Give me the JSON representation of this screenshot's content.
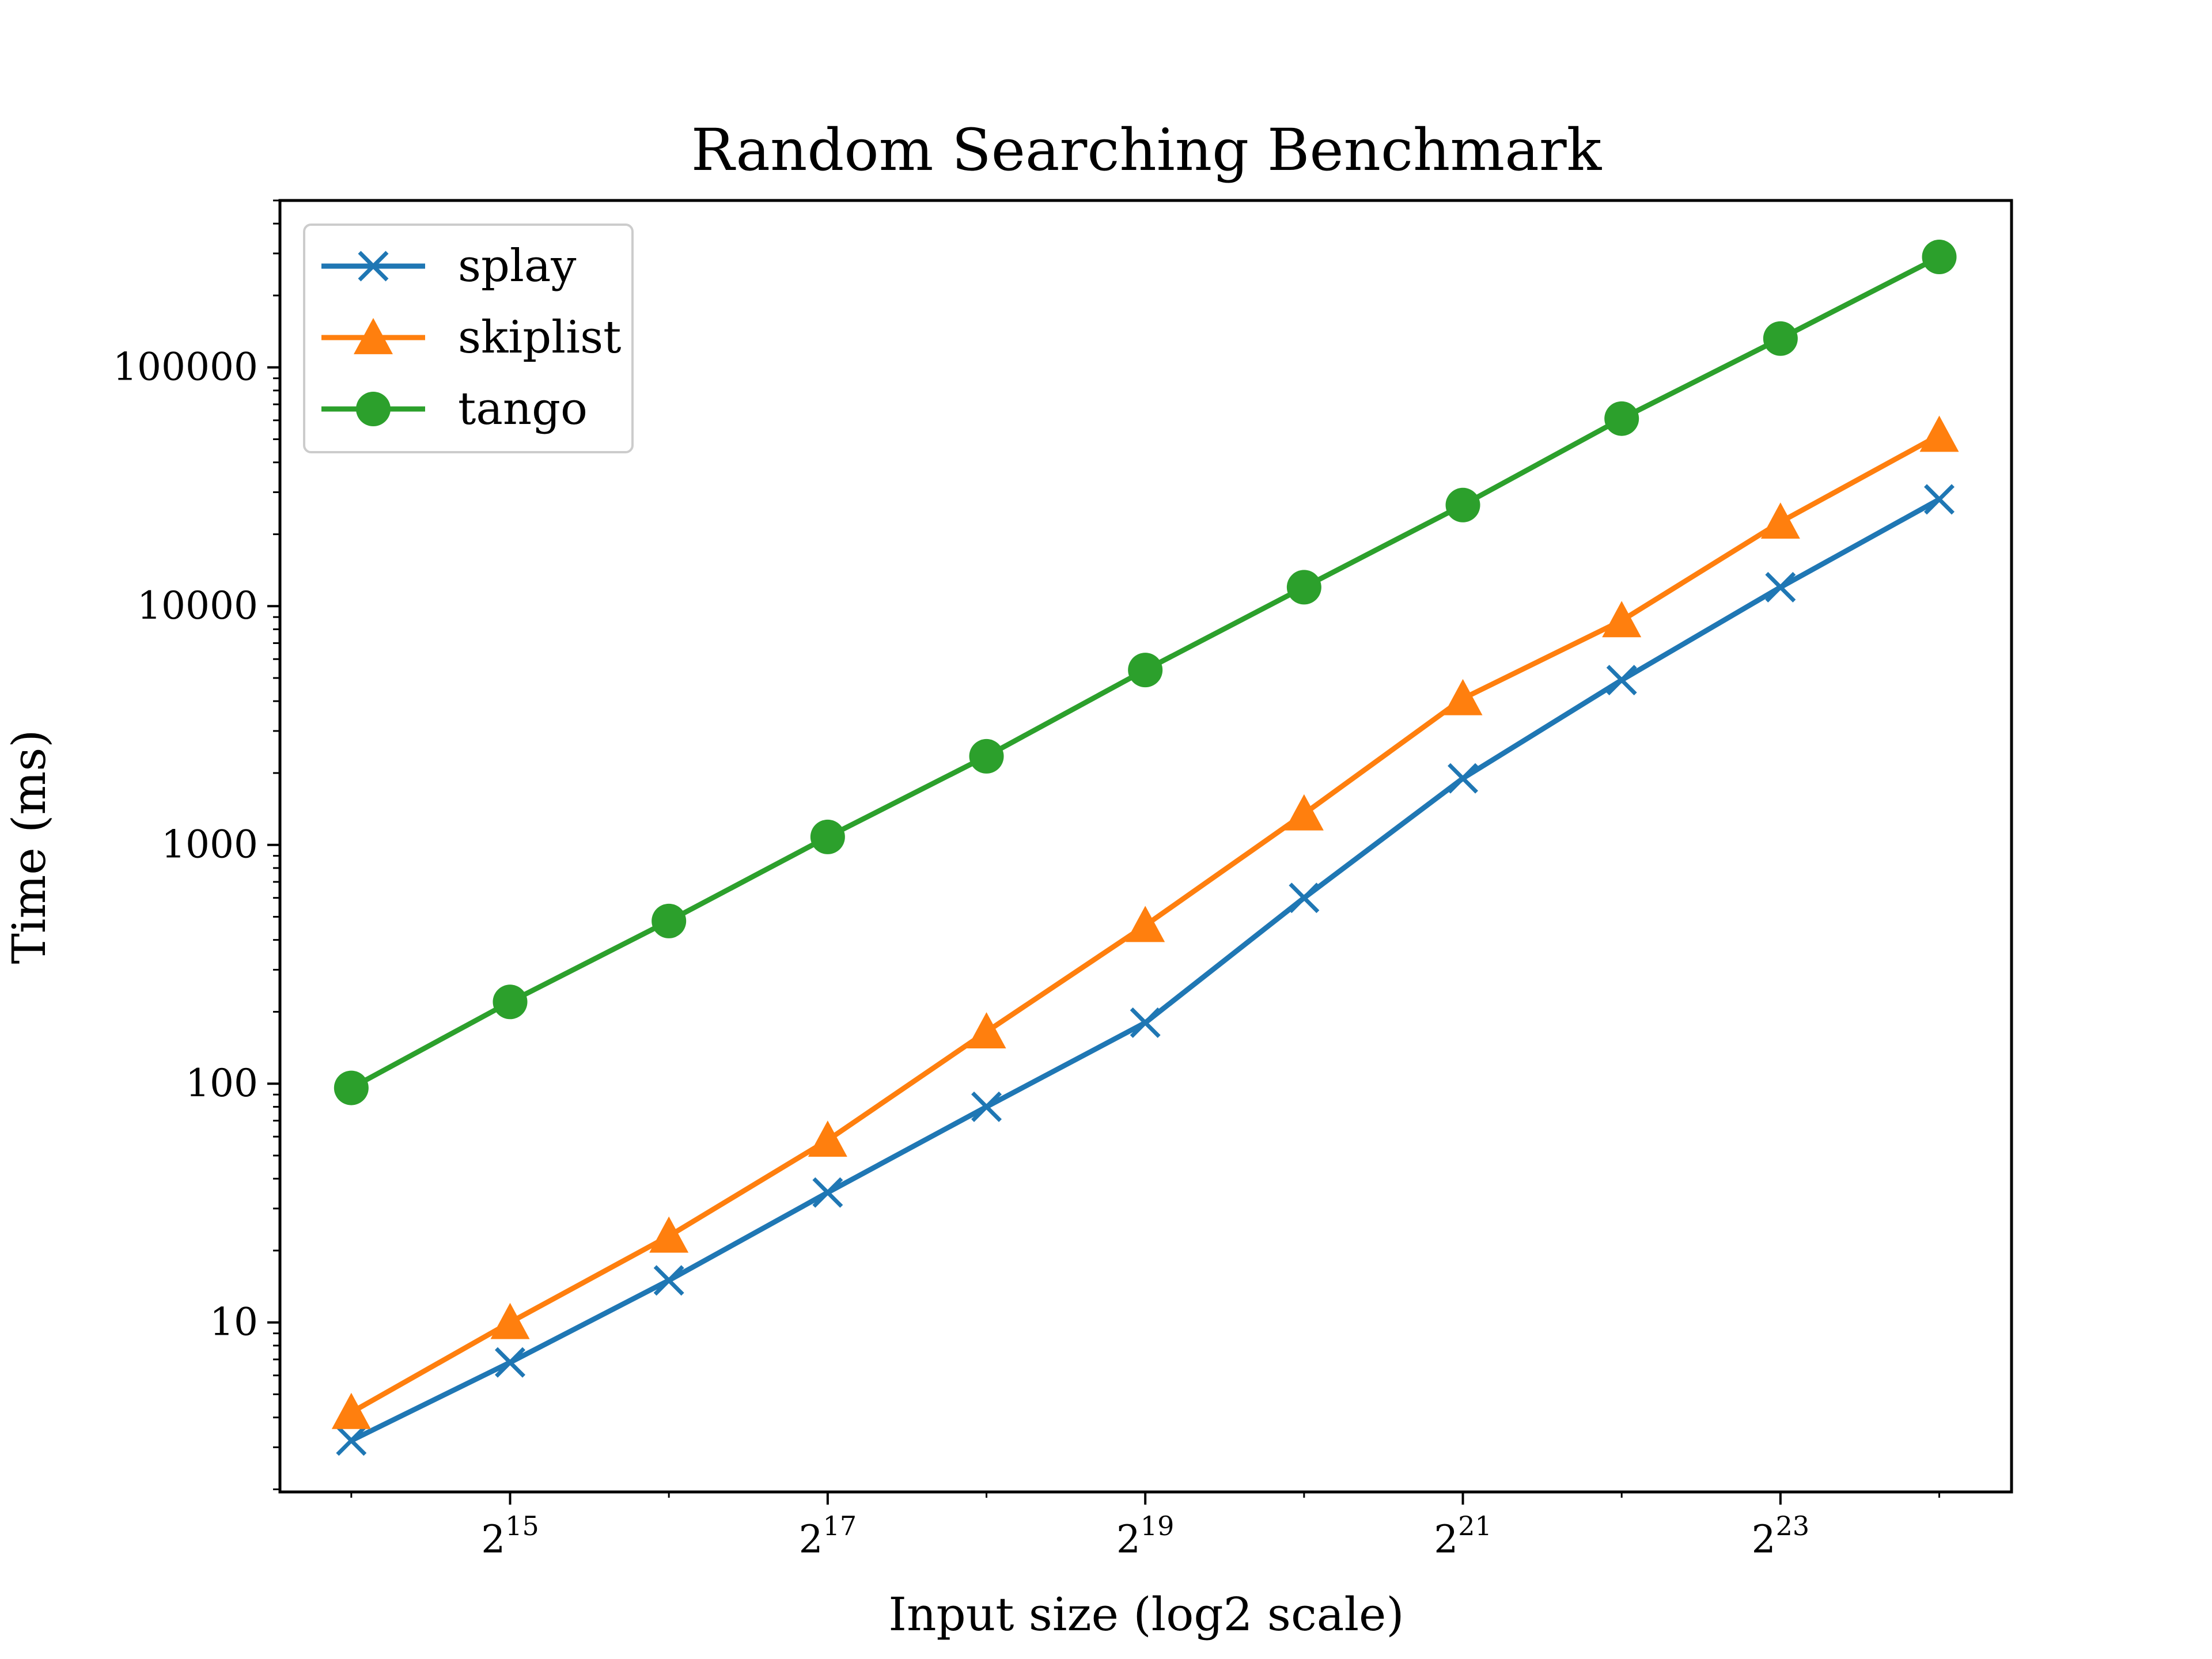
{
  "chart_data": {
    "type": "line",
    "title": "Random Searching Benchmark",
    "xlabel": "Input size (log2 scale)",
    "ylabel": "Time (ms)",
    "x_scale": "log2",
    "y_scale": "log10",
    "x": [
      16384,
      32768,
      65536,
      131072,
      262144,
      524288,
      1048576,
      2097152,
      4194304,
      8388608,
      16777216
    ],
    "x_ticks": [
      {
        "value": 32768,
        "base": "2",
        "exp": "15"
      },
      {
        "value": 131072,
        "base": "2",
        "exp": "17"
      },
      {
        "value": 524288,
        "base": "2",
        "exp": "19"
      },
      {
        "value": 2097152,
        "base": "2",
        "exp": "21"
      },
      {
        "value": 8388608,
        "base": "2",
        "exp": "23"
      }
    ],
    "y_ticks": [
      {
        "value": 10,
        "label": "10"
      },
      {
        "value": 100,
        "label": "100"
      },
      {
        "value": 1000,
        "label": "1000"
      },
      {
        "value": 10000,
        "label": "10000"
      },
      {
        "value": 100000,
        "label": "100000"
      }
    ],
    "xlim": [
      12000,
      23000000
    ],
    "ylim": [
      1.95,
      500000
    ],
    "grid": false,
    "legend_position": "top-left",
    "series": [
      {
        "name": "splay",
        "color": "#1f77b4",
        "marker": "x",
        "values": [
          3.2,
          6.8,
          15,
          35,
          80,
          180,
          600,
          1900,
          4900,
          12000,
          28000
        ]
      },
      {
        "name": "skiplist",
        "color": "#ff7f0e",
        "marker": "triangle",
        "values": [
          4.2,
          10,
          23,
          58,
          165,
          460,
          1350,
          4100,
          8700,
          22500,
          52000
        ]
      },
      {
        "name": "tango",
        "color": "#2ca02c",
        "marker": "circle",
        "values": [
          96,
          220,
          480,
          1080,
          2350,
          5400,
          12000,
          26500,
          61000,
          132000,
          290000
        ]
      }
    ]
  }
}
